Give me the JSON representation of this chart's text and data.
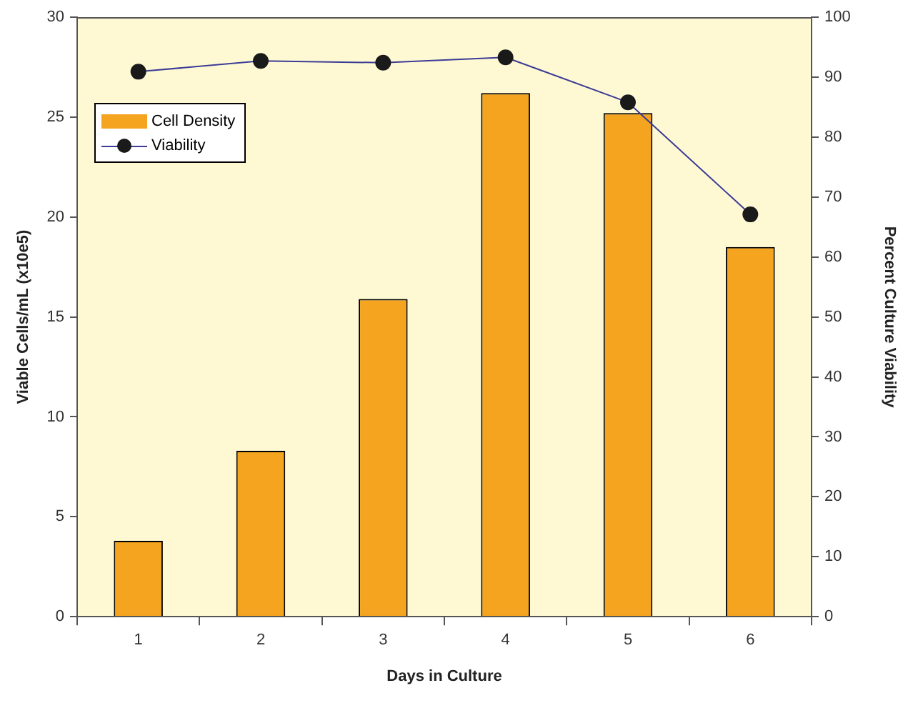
{
  "chart_data": {
    "type": "bar",
    "xlabel": "Days in Culture",
    "ylabel": "Viable Cells/mL (x10e5)",
    "y2label": "Percent Culture Viability",
    "categories": [
      "1",
      "2",
      "3",
      "4",
      "5",
      "6"
    ],
    "series": [
      {
        "name": "Cell Density",
        "color": "#f5a41f",
        "values": [
          3.8,
          8.3,
          15.9,
          26.2,
          25.2,
          18.5
        ]
      },
      {
        "name": "Viability",
        "type": "line",
        "axis": "y2",
        "color": "#3c3c96",
        "values": [
          90.9,
          92.7,
          92.4,
          93.3,
          85.8,
          67.1
        ]
      }
    ],
    "ylim": [
      0,
      30
    ],
    "yticks": [
      0,
      5,
      10,
      15,
      20,
      25,
      30
    ],
    "y2lim": [
      0,
      100
    ],
    "y2ticks": [
      0,
      10,
      20,
      30,
      40,
      50,
      60,
      70,
      80,
      90,
      100
    ],
    "grid": false,
    "legend": "top left",
    "marker": "circle",
    "line_style": "solid"
  }
}
